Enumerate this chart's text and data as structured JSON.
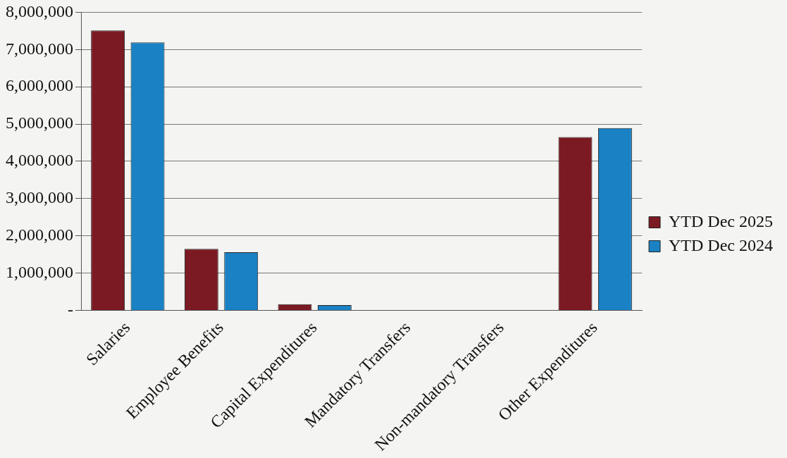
{
  "chart_data": {
    "type": "bar",
    "categories": [
      "Salaries",
      "Employee Benefits",
      "Capital Expenditures",
      "Mandatory Transfers",
      "Non-mandatory Transfers",
      "Other Expenditures"
    ],
    "series": [
      {
        "name": "YTD Dec 2025",
        "color": "#7b1a22",
        "values": [
          7510000,
          1650000,
          165000,
          0,
          0,
          4650000
        ]
      },
      {
        "name": "YTD Dec 2024",
        "color": "#1a82c4",
        "values": [
          7190000,
          1560000,
          140000,
          0,
          0,
          4890000
        ]
      }
    ],
    "ylim": [
      0,
      8000000
    ],
    "yticks": [
      {
        "value": 0,
        "label": "-"
      },
      {
        "value": 1000000,
        "label": "1,000,000"
      },
      {
        "value": 2000000,
        "label": "2,000,000"
      },
      {
        "value": 3000000,
        "label": "3,000,000"
      },
      {
        "value": 4000000,
        "label": "4,000,000"
      },
      {
        "value": 5000000,
        "label": "5,000,000"
      },
      {
        "value": 6000000,
        "label": "6,000,000"
      },
      {
        "value": 7000000,
        "label": "7,000,000"
      },
      {
        "value": 8000000,
        "label": "8,000,000"
      }
    ],
    "grid": "y",
    "legend": "right"
  }
}
